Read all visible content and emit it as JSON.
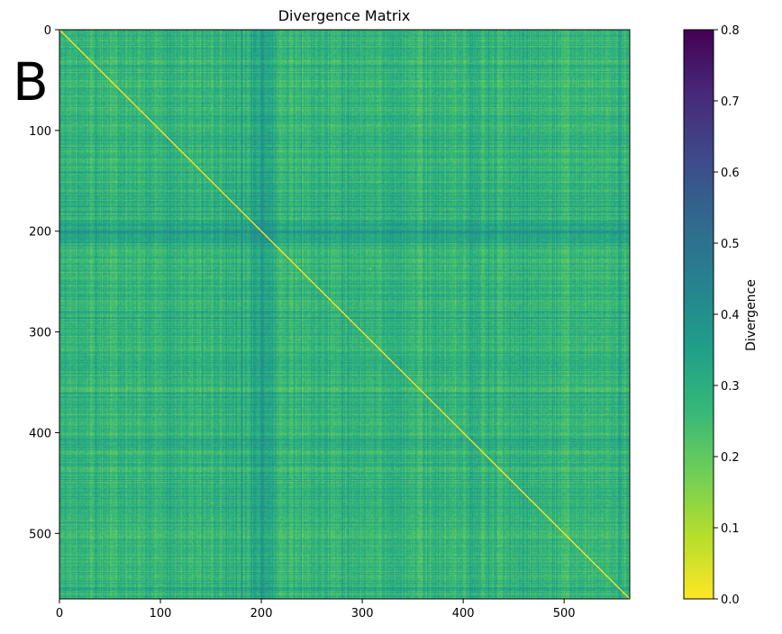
{
  "panel_label": "B",
  "chart_data": {
    "type": "heatmap",
    "title": "Divergence Matrix",
    "n": 565,
    "xlim": [
      0,
      565
    ],
    "ylim": [
      565,
      0
    ],
    "x_ticks": [
      0,
      100,
      200,
      300,
      400,
      500
    ],
    "y_ticks": [
      0,
      100,
      200,
      300,
      400,
      500
    ],
    "colorbar": {
      "label": "Divergence",
      "range": [
        0.0,
        0.8
      ],
      "ticks": [
        "0.0",
        "0.1",
        "0.2",
        "0.3",
        "0.4",
        "0.5",
        "0.6",
        "0.7",
        "0.8"
      ],
      "colormap": "viridis_r"
    },
    "values": {
      "diagonal": 0.0,
      "typical_off_diagonal": 0.27,
      "range_observed": [
        0.0,
        0.42
      ],
      "darker_bands": [
        195,
        205,
        410
      ],
      "low_value_outliers": [
        [
          237,
          308
        ],
        [
          308,
          237
        ]
      ]
    }
  },
  "colors": {
    "viridis_r_stops": [
      "#fde725",
      "#b5de2b",
      "#6ece58",
      "#35b779",
      "#1f9e89",
      "#26828e",
      "#31688e",
      "#3e4989",
      "#482878",
      "#440154"
    ]
  }
}
